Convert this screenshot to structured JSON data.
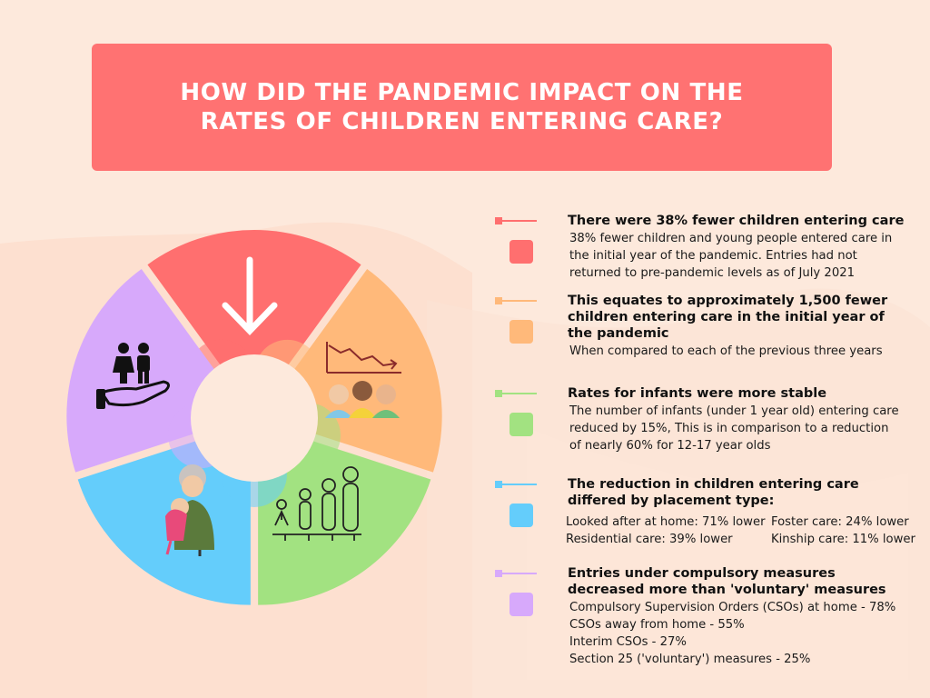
{
  "title": "HOW DID THE PANDEMIC IMPACT ON THE RATES OF CHILDREN ENTERING CARE?",
  "colors": {
    "background": "#fde9dc",
    "title_bg": "#ff7272",
    "red": "#ff6f6f",
    "orange": "#ffb97a",
    "green": "#a2e281",
    "blue": "#64cdfb",
    "purple": "#d7a9fb"
  },
  "pie_icons": [
    "down-arrow-icon",
    "declining-chart-people-icon",
    "growth-figures-icon",
    "grandparent-hug-icon",
    "children-hand-icon"
  ],
  "items": [
    {
      "color": "#ff6f6f",
      "heading": "There were 38% fewer children entering care",
      "lines": [
        "38% fewer children and young people entered care in",
        "the initial year of the pandemic. Entries had not",
        "returned to pre-pandemic levels as of July 2021"
      ]
    },
    {
      "color": "#ffb97a",
      "heading_lines": [
        "This equates to approximately 1,500 fewer",
        "children entering care in the initial year of",
        "the pandemic"
      ],
      "lines": [
        "When compared to each of the previous three years"
      ]
    },
    {
      "color": "#a2e281",
      "heading": "Rates for infants were more stable",
      "lines": [
        "The number of infants (under 1 year old) entering care",
        "reduced by 15%,  This is in comparison to a reduction",
        "of nearly 60% for 12-17 year olds"
      ]
    },
    {
      "color": "#64cdfb",
      "heading_lines": [
        "The reduction in children entering care",
        "differed by placement type:"
      ],
      "grid": [
        "Looked after at home: 71% lower",
        "Foster care: 24% lower",
        "Residential care: 39% lower",
        "Kinship care: 11% lower"
      ]
    },
    {
      "color": "#d7a9fb",
      "heading_lines": [
        "Entries under compulsory measures",
        "decreased more than 'voluntary' measures"
      ],
      "lines": [
        "Compulsory Supervision Orders (CSOs) at home - 78%",
        "CSOs away from home - 55%",
        "Interim CSOs - 27%",
        "Section 25 ('voluntary') measures - 25%"
      ]
    }
  ]
}
